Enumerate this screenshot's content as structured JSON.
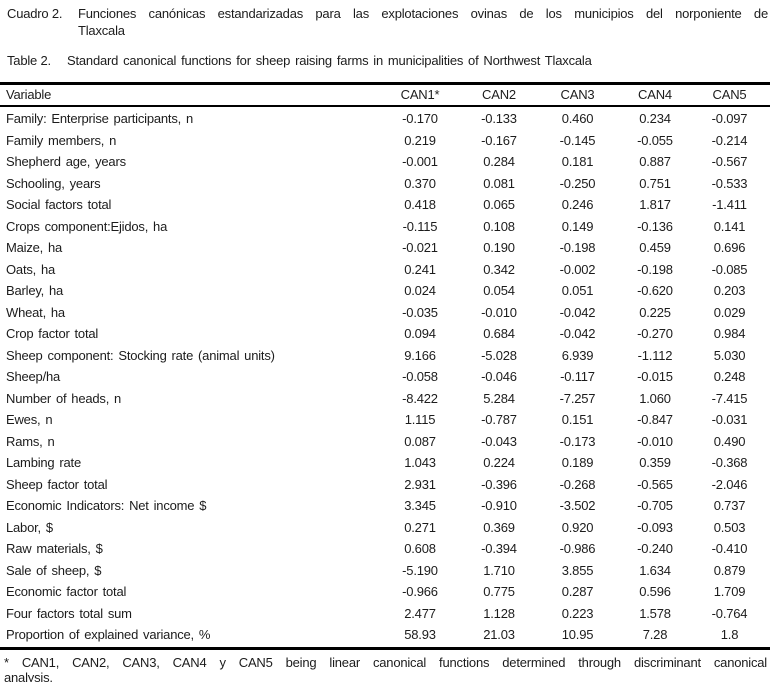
{
  "caption_es": {
    "label": "Cuadro 2.",
    "line1": "Funciones canónicas estandarizadas para las explotaciones ovinas de los municipios del norponiente de",
    "line2": "Tlaxcala"
  },
  "caption_en": {
    "label": "Table 2.",
    "line1": "Standard canonical functions for sheep raising farms in municipalities of Northwest Tlaxcala"
  },
  "table": {
    "columns": [
      "Variable",
      "CAN1*",
      "CAN2",
      "CAN3",
      "CAN4",
      "CAN5"
    ],
    "rows": [
      {
        "variable": "Family: Enterprise participants, n",
        "values": [
          "-0.170",
          "-0.133",
          "0.460",
          "0.234",
          "-0.097"
        ]
      },
      {
        "variable": "Family members, n",
        "values": [
          "0.219",
          "-0.167",
          "-0.145",
          "-0.055",
          "-0.214"
        ]
      },
      {
        "variable": "Shepherd age, years",
        "values": [
          "-0.001",
          "0.284",
          "0.181",
          "0.887",
          "-0.567"
        ]
      },
      {
        "variable": "Schooling, years",
        "values": [
          "0.370",
          "0.081",
          "-0.250",
          "0.751",
          "-0.533"
        ]
      },
      {
        "variable": "Social factors total",
        "values": [
          "0.418",
          "0.065",
          "0.246",
          "1.817",
          "-1.411"
        ]
      },
      {
        "variable": "Crops component:Ejidos, ha",
        "values": [
          "-0.115",
          "0.108",
          "0.149",
          "-0.136",
          "0.141"
        ]
      },
      {
        "variable": "Maize, ha",
        "values": [
          "-0.021",
          "0.190",
          "-0.198",
          "0.459",
          "0.696"
        ]
      },
      {
        "variable": "Oats, ha",
        "values": [
          "0.241",
          "0.342",
          "-0.002",
          "-0.198",
          "-0.085"
        ]
      },
      {
        "variable": "Barley, ha",
        "values": [
          "0.024",
          "0.054",
          "0.051",
          "-0.620",
          "0.203"
        ]
      },
      {
        "variable": "Wheat, ha",
        "values": [
          "-0.035",
          "-0.010",
          "-0.042",
          "0.225",
          "0.029"
        ]
      },
      {
        "variable": "Crop factor total",
        "values": [
          "0.094",
          "0.684",
          "-0.042",
          "-0.270",
          "0.984"
        ]
      },
      {
        "variable": "Sheep component: Stocking rate (animal units)",
        "values": [
          "9.166",
          "-5.028",
          "6.939",
          "-1.112",
          "5.030"
        ]
      },
      {
        "variable": "Sheep/ha",
        "values": [
          "-0.058",
          "-0.046",
          "-0.117",
          "-0.015",
          "0.248"
        ]
      },
      {
        "variable": "Number of heads, n",
        "values": [
          "-8.422",
          "5.284",
          "-7.257",
          "1.060",
          "-7.415"
        ]
      },
      {
        "variable": "Ewes, n",
        "values": [
          "1.115",
          "-0.787",
          "0.151",
          "-0.847",
          "-0.031"
        ]
      },
      {
        "variable": "Rams, n",
        "values": [
          "0.087",
          "-0.043",
          "-0.173",
          "-0.010",
          "0.490"
        ]
      },
      {
        "variable": "Lambing rate",
        "values": [
          "1.043",
          "0.224",
          "0.189",
          "0.359",
          "-0.368"
        ]
      },
      {
        "variable": "Sheep factor total",
        "values": [
          "2.931",
          "-0.396",
          "-0.268",
          "-0.565",
          "-2.046"
        ]
      },
      {
        "variable": "Economic Indicators: Net income $",
        "values": [
          "3.345",
          "-0.910",
          "-3.502",
          "-0.705",
          "0.737"
        ]
      },
      {
        "variable": "Labor, $",
        "values": [
          "0.271",
          "0.369",
          "0.920",
          "-0.093",
          "0.503"
        ]
      },
      {
        "variable": "Raw materials, $",
        "values": [
          "0.608",
          "-0.394",
          "-0.986",
          "-0.240",
          "-0.410"
        ]
      },
      {
        "variable": "Sale of sheep, $",
        "values": [
          "-5.190",
          "1.710",
          "3.855",
          "1.634",
          "0.879"
        ]
      },
      {
        "variable": "Economic factor total",
        "values": [
          "-0.966",
          "0.775",
          "0.287",
          "0.596",
          "1.709"
        ]
      },
      {
        "variable": "Four factors total sum",
        "values": [
          "2.477",
          "1.128",
          "0.223",
          "1.578",
          "-0.764"
        ]
      },
      {
        "variable": "Proportion of explained variance, %",
        "values": [
          "58.93",
          "21.03",
          "10.95",
          "7.28",
          "1.8"
        ]
      }
    ]
  },
  "footnote": {
    "line1": "* CAN1, CAN2, CAN3, CAN4 y CAN5 being linear canonical functions determined through discriminant canonical",
    "line2": "analysis."
  }
}
